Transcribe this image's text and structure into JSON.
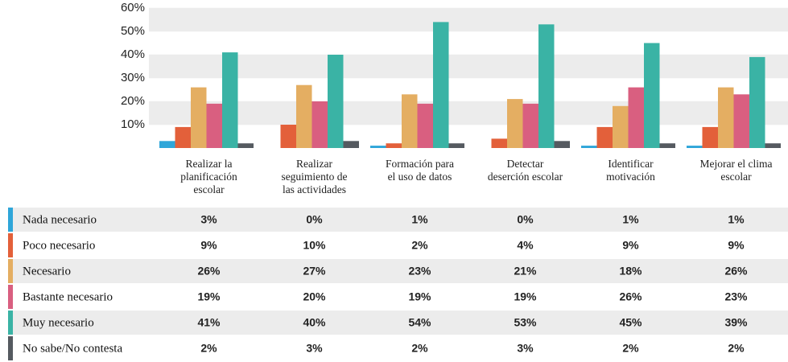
{
  "chart_data": {
    "type": "bar",
    "categories": [
      "Realizar la\nplanificación\nescolar",
      "Realizar\nseguimiento de\nlas actividades",
      "Formación para\nel uso de datos",
      "Detectar\ndeserción escolar",
      "Identificar\nmotivación",
      "Mejorar el clima\nescolar"
    ],
    "series": [
      {
        "name": "Nada necesario",
        "color": "#2fa6d9",
        "values": [
          3,
          0,
          1,
          0,
          1,
          1
        ],
        "value_labels": [
          "3%",
          "0%",
          "1%",
          "0%",
          "1%",
          "1%"
        ]
      },
      {
        "name": "Poco necesario",
        "color": "#e3603a",
        "values": [
          9,
          10,
          2,
          4,
          9,
          9
        ],
        "value_labels": [
          "9%",
          "10%",
          "2%",
          "4%",
          "9%",
          "9%"
        ]
      },
      {
        "name": "Necesario",
        "color": "#e4ae62",
        "values": [
          26,
          27,
          23,
          21,
          18,
          26
        ],
        "value_labels": [
          "26%",
          "27%",
          "23%",
          "21%",
          "18%",
          "26%"
        ]
      },
      {
        "name": "Bastante necesario",
        "color": "#d95f80",
        "values": [
          19,
          20,
          19,
          19,
          26,
          23
        ],
        "value_labels": [
          "19%",
          "20%",
          "19%",
          "19%",
          "26%",
          "23%"
        ]
      },
      {
        "name": "Muy necesario",
        "color": "#3ab3a5",
        "values": [
          41,
          40,
          54,
          53,
          45,
          39
        ],
        "value_labels": [
          "41%",
          "40%",
          "54%",
          "53%",
          "45%",
          "39%"
        ]
      },
      {
        "name": "No sabe/No contesta",
        "color": "#555a60",
        "values": [
          2,
          3,
          2,
          3,
          2,
          2
        ],
        "value_labels": [
          "2%",
          "3%",
          "2%",
          "3%",
          "2%",
          "2%"
        ]
      }
    ],
    "ylim": [
      0,
      60
    ],
    "yticks": [
      {
        "value": 10,
        "label": "10%"
      },
      {
        "value": 20,
        "label": "20%"
      },
      {
        "value": 30,
        "label": "30%"
      },
      {
        "value": 40,
        "label": "40%"
      },
      {
        "value": 50,
        "label": "50%"
      },
      {
        "value": 60,
        "label": "60%"
      }
    ],
    "grid": true
  }
}
